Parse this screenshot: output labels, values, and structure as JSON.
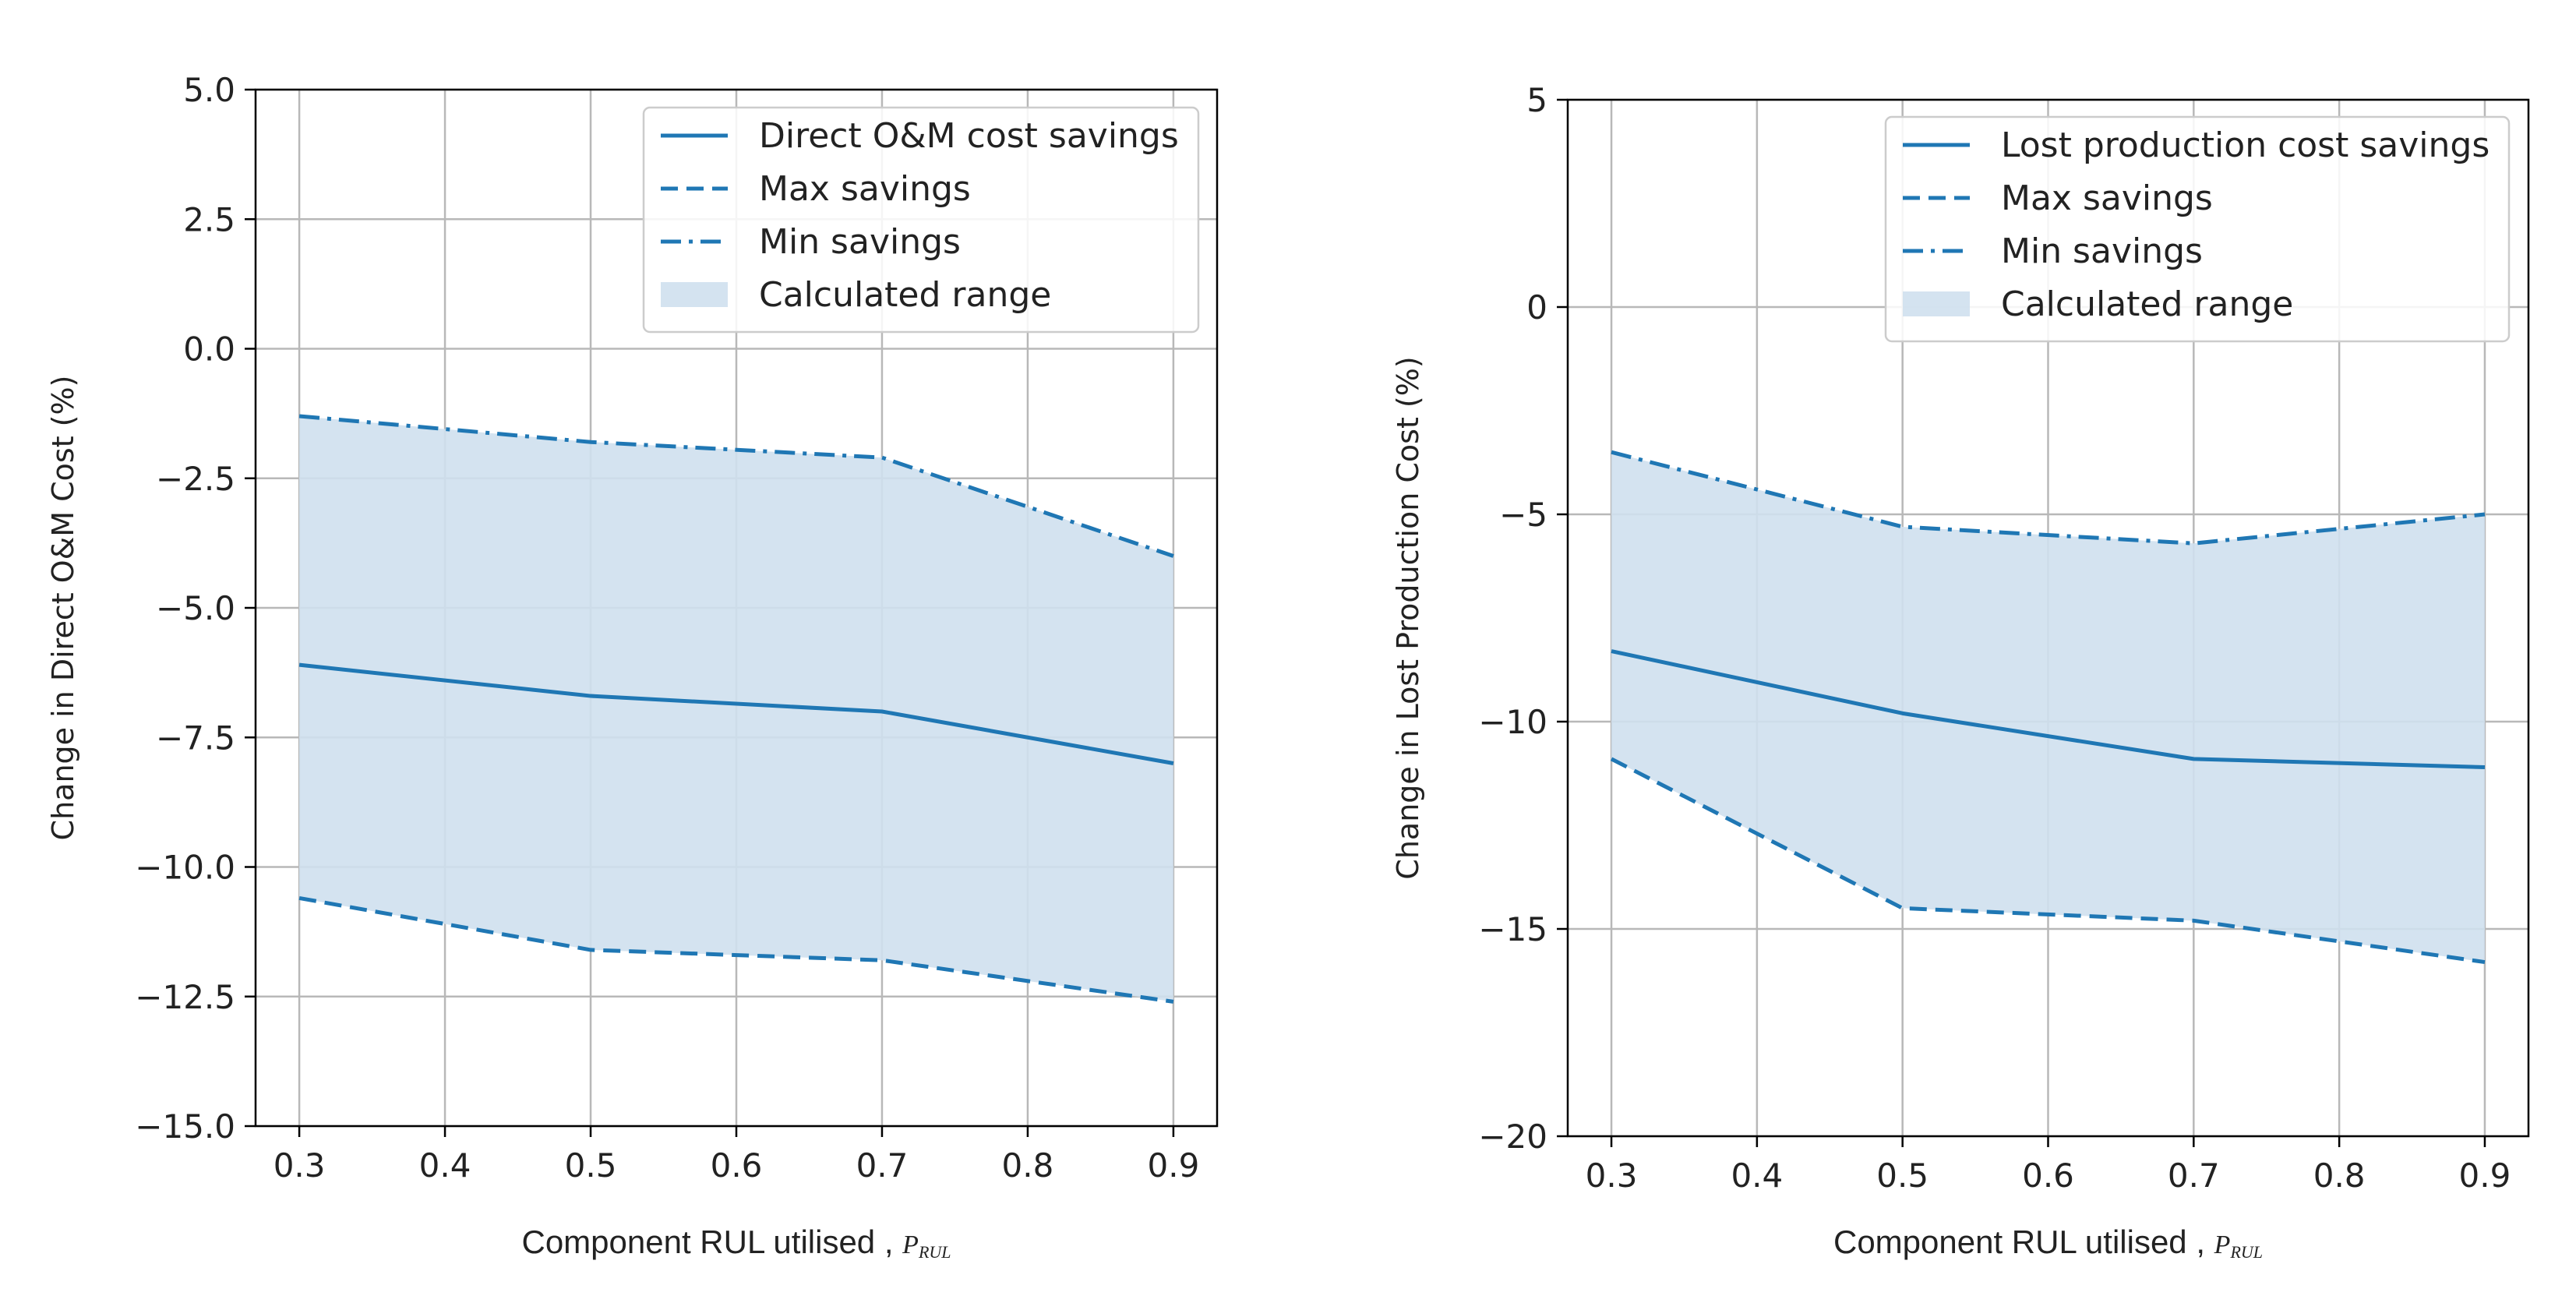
{
  "colors": {
    "series": "#1f77b4",
    "fill": "#cfe0ee",
    "grid": "#b8b8b8",
    "axis": "#000000"
  },
  "chart_data": [
    {
      "type": "line",
      "x": [
        0.3,
        0.5,
        0.7,
        0.9
      ],
      "xticks": [
        0.3,
        0.4,
        0.5,
        0.6,
        0.7,
        0.8,
        0.9
      ],
      "xtick_labels": [
        "0.3",
        "0.4",
        "0.5",
        "0.6",
        "0.7",
        "0.8",
        "0.9"
      ],
      "xlim": [
        0.27,
        0.93
      ],
      "yticks": [
        5.0,
        2.5,
        0.0,
        -2.5,
        -5.0,
        -7.5,
        -10.0,
        -12.5,
        -15.0
      ],
      "ytick_labels": [
        "5.0",
        "2.5",
        "0.0",
        "−2.5",
        "−5.0",
        "−7.5",
        "−10.0",
        "−12.5",
        "−15.0"
      ],
      "ylim": [
        -15.0,
        5.0
      ],
      "xlabel": "Component RUL utilised ,",
      "xlabel_symbol": "P",
      "xlabel_sub": "RUL",
      "ylabel": "Change in Direct O&M Cost (%)",
      "series": [
        {
          "name": "Direct O&M cost savings",
          "style": "solid",
          "values": [
            -6.1,
            -6.7,
            -7.0,
            -8.0
          ]
        },
        {
          "name": "Max savings",
          "style": "dashed",
          "values": [
            -10.6,
            -11.6,
            -11.8,
            -12.6
          ]
        },
        {
          "name": "Min savings",
          "style": "dashdot",
          "values": [
            -1.3,
            -1.8,
            -2.1,
            -4.0
          ]
        }
      ],
      "fill_label": "Calculated range",
      "legend_position": "upper-right",
      "grid": true
    },
    {
      "type": "line",
      "x": [
        0.3,
        0.5,
        0.7,
        0.9
      ],
      "xticks": [
        0.3,
        0.4,
        0.5,
        0.6,
        0.7,
        0.8,
        0.9
      ],
      "xtick_labels": [
        "0.3",
        "0.4",
        "0.5",
        "0.6",
        "0.7",
        "0.8",
        "0.9"
      ],
      "xlim": [
        0.27,
        0.93
      ],
      "yticks": [
        5,
        0,
        -5,
        -10,
        -15,
        -20
      ],
      "ytick_labels": [
        "5",
        "0",
        "−5",
        "−10",
        "−15",
        "−20"
      ],
      "ylim": [
        -20,
        5
      ],
      "xlabel": "Component RUL utilised ,",
      "xlabel_symbol": "P",
      "xlabel_sub": "RUL",
      "ylabel": "Change in Lost Production Cost (%)",
      "series": [
        {
          "name": "Lost production cost savings",
          "style": "solid",
          "values": [
            -8.3,
            -9.8,
            -10.9,
            -11.1
          ]
        },
        {
          "name": "Max savings",
          "style": "dashed",
          "values": [
            -10.9,
            -14.5,
            -14.8,
            -15.8
          ]
        },
        {
          "name": "Min savings",
          "style": "dashdot",
          "values": [
            -3.5,
            -5.3,
            -5.7,
            -5.0
          ]
        }
      ],
      "fill_label": "Calculated range",
      "legend_position": "upper-right",
      "grid": true
    }
  ]
}
